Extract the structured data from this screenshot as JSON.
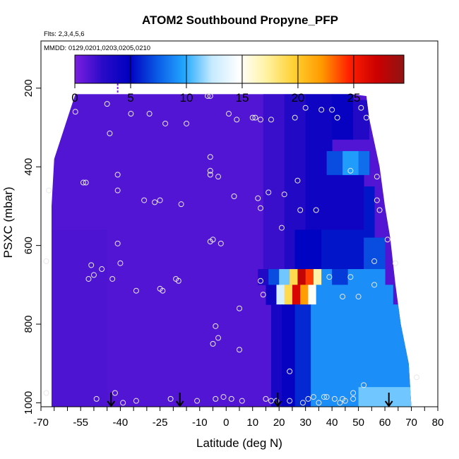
{
  "chart_data": {
    "type": "heatmap",
    "title": "ATOM2 Southbound Propyne_PFP",
    "flights_label": "Flts: 2,3,4,5,6",
    "dates_label": "MMDD: 0129,0201,0203,0205,0210",
    "xlabel": "Latitude (deg N)",
    "ylabel": "PSXC (mbar)",
    "xlim": [
      -70,
      80
    ],
    "ylim": [
      1010,
      80
    ],
    "x_ticks": [
      -70,
      -65,
      -60,
      -55,
      -50,
      -45,
      -40,
      -35,
      -30,
      -25,
      -20,
      -15,
      -10,
      -5,
      0,
      5,
      10,
      15,
      20,
      25,
      30,
      35,
      40,
      45,
      50,
      55,
      60,
      65,
      70,
      75,
      80
    ],
    "x_tick_labels": [
      {
        "value": -70,
        "label": "-70"
      },
      {
        "value": -55,
        "label": "-55"
      },
      {
        "value": -40,
        "label": "-40"
      },
      {
        "value": -25,
        "label": "-25"
      },
      {
        "value": -10,
        "label": "-10"
      },
      {
        "value": 0,
        "label": "0"
      },
      {
        "value": 10,
        "label": "10"
      },
      {
        "value": 20,
        "label": "20"
      },
      {
        "value": 30,
        "label": "30"
      },
      {
        "value": 40,
        "label": "40"
      },
      {
        "value": 50,
        "label": "50"
      },
      {
        "value": 60,
        "label": "60"
      },
      {
        "value": 70,
        "label": "70"
      },
      {
        "value": 80,
        "label": "80"
      }
    ],
    "y_tick_labels": [
      {
        "value": 200,
        "label": "200"
      },
      {
        "value": 400,
        "label": "400"
      },
      {
        "value": 600,
        "label": "600"
      },
      {
        "value": 800,
        "label": "800"
      },
      {
        "value": 1000,
        "label": "1000"
      }
    ],
    "colorbar": {
      "min": 0,
      "max": 29.5,
      "ticks": [
        0,
        5,
        10,
        15,
        20,
        25
      ],
      "tick_labels": [
        "0",
        "5",
        "10",
        "15",
        "20",
        "25"
      ],
      "color_stops": [
        "#7b1fe0",
        "#2a0bc8",
        "#0000c0",
        "#0a5ae6",
        "#23a8ff",
        "#c5eaff",
        "#ffffff",
        "#fff2a0",
        "#ffd030",
        "#ff9a00",
        "#ff2000",
        "#cc0000",
        "#8f1414"
      ]
    },
    "top_pressure_boundary": [
      {
        "lat": -57,
        "p": 215
      },
      {
        "lat": -40,
        "p": 215
      },
      {
        "lat": -10,
        "p": 215
      },
      {
        "lat": 20,
        "p": 215
      },
      {
        "lat": 47,
        "p": 215
      },
      {
        "lat": 53,
        "p": 220
      },
      {
        "lat": 54,
        "p": 275
      },
      {
        "lat": 58,
        "p": 400
      },
      {
        "lat": 60,
        "p": 500
      },
      {
        "lat": 62,
        "p": 580
      },
      {
        "lat": 64,
        "p": 700
      },
      {
        "lat": 66,
        "p": 800
      },
      {
        "lat": 69,
        "p": 900
      },
      {
        "lat": 70,
        "p": 1010
      }
    ],
    "left_boundary": [
      {
        "lat": -57,
        "p": 215
      },
      {
        "lat": -65,
        "p": 380
      },
      {
        "lat": -66,
        "p": 500
      },
      {
        "lat": -66,
        "p": 1010
      }
    ],
    "field_regions": [
      {
        "lat": [
          -66,
          70
        ],
        "p": [
          215,
          1010
        ],
        "value": 1.2
      },
      {
        "lat": [
          -66,
          -45
        ],
        "p": [
          560,
          1010
        ],
        "value": 1.4
      },
      {
        "lat": [
          14,
          22
        ],
        "p": [
          215,
          660
        ],
        "value": 2.0
      },
      {
        "lat": [
          22,
          30
        ],
        "p": [
          215,
          660
        ],
        "value": 3.0
      },
      {
        "lat": [
          30,
          40
        ],
        "p": [
          215,
          420
        ],
        "value": 4.0
      },
      {
        "lat": [
          40,
          48
        ],
        "p": [
          215,
          330
        ],
        "value": 4.5
      },
      {
        "lat": [
          48,
          54
        ],
        "p": [
          230,
          330
        ],
        "value": 3.0
      },
      {
        "lat": [
          30,
          52
        ],
        "p": [
          420,
          560
        ],
        "value": 4.0
      },
      {
        "lat": [
          52,
          56
        ],
        "p": [
          450,
          600
        ],
        "value": 5.5
      },
      {
        "lat": [
          26,
          36
        ],
        "p": [
          560,
          660
        ],
        "value": 5.0
      },
      {
        "lat": [
          36,
          52
        ],
        "p": [
          560,
          660
        ],
        "value": 5.5
      },
      {
        "lat": [
          52,
          60
        ],
        "p": [
          580,
          660
        ],
        "value": 7.0
      },
      {
        "lat": [
          38,
          44
        ],
        "p": [
          360,
          420
        ],
        "value": 7.0
      },
      {
        "lat": [
          44,
          50
        ],
        "p": [
          360,
          420
        ],
        "value": 9.5
      },
      {
        "lat": [
          50,
          54
        ],
        "p": [
          360,
          420
        ],
        "value": 8.0
      },
      {
        "lat": [
          12,
          16
        ],
        "p": [
          660,
          700
        ],
        "value": 3.0
      },
      {
        "lat": [
          16,
          20
        ],
        "p": [
          660,
          700
        ],
        "value": 7.0
      },
      {
        "lat": [
          20,
          24
        ],
        "p": [
          660,
          700
        ],
        "value": 11.0
      },
      {
        "lat": [
          24,
          27
        ],
        "p": [
          660,
          700
        ],
        "value": 19.0
      },
      {
        "lat": [
          27,
          30
        ],
        "p": [
          660,
          700
        ],
        "value": 27.5
      },
      {
        "lat": [
          30,
          33
        ],
        "p": [
          660,
          700
        ],
        "value": 24.0
      },
      {
        "lat": [
          33,
          36
        ],
        "p": [
          660,
          700
        ],
        "value": 17.0
      },
      {
        "lat": [
          36,
          40
        ],
        "p": [
          660,
          700
        ],
        "value": 9.0
      },
      {
        "lat": [
          40,
          46
        ],
        "p": [
          660,
          700
        ],
        "value": 6.5
      },
      {
        "lat": [
          46,
          60
        ],
        "p": [
          660,
          700
        ],
        "value": 9.0
      },
      {
        "lat": [
          15,
          19
        ],
        "p": [
          700,
          750
        ],
        "value": 4.0
      },
      {
        "lat": [
          19,
          22
        ],
        "p": [
          700,
          750
        ],
        "value": 13.0
      },
      {
        "lat": [
          22,
          25
        ],
        "p": [
          700,
          750
        ],
        "value": 19.0
      },
      {
        "lat": [
          25,
          28
        ],
        "p": [
          700,
          750
        ],
        "value": 26.5
      },
      {
        "lat": [
          28,
          31
        ],
        "p": [
          700,
          750
        ],
        "value": 22.0
      },
      {
        "lat": [
          31,
          34
        ],
        "p": [
          700,
          750
        ],
        "value": 15.0
      },
      {
        "lat": [
          34,
          63
        ],
        "p": [
          700,
          750
        ],
        "value": 9.0
      },
      {
        "lat": [
          17,
          21
        ],
        "p": [
          750,
          1010
        ],
        "value": 3.5
      },
      {
        "lat": [
          21,
          26
        ],
        "p": [
          750,
          1010
        ],
        "value": 4.5
      },
      {
        "lat": [
          26,
          32
        ],
        "p": [
          750,
          1010
        ],
        "value": 6.0
      },
      {
        "lat": [
          32,
          70
        ],
        "p": [
          750,
          1010
        ],
        "value": 9.0
      },
      {
        "lat": [
          50,
          70
        ],
        "p": [
          960,
          1010
        ],
        "value": 11.0
      }
    ],
    "sample_points": [
      {
        "lat": -68,
        "p": 640
      },
      {
        "lat": -67,
        "p": 460
      },
      {
        "lat": -68,
        "p": 975
      },
      {
        "lat": -57,
        "p": 260
      },
      {
        "lat": -54,
        "p": 440
      },
      {
        "lat": -53,
        "p": 440
      },
      {
        "lat": -52,
        "p": 685
      },
      {
        "lat": -51,
        "p": 650
      },
      {
        "lat": -50,
        "p": 675
      },
      {
        "lat": -49,
        "p": 990
      },
      {
        "lat": -47,
        "p": 660
      },
      {
        "lat": -45,
        "p": 240
      },
      {
        "lat": -44,
        "p": 315
      },
      {
        "lat": -43,
        "p": 685
      },
      {
        "lat": -42,
        "p": 975
      },
      {
        "lat": -41,
        "p": 460
      },
      {
        "lat": -41,
        "p": 420
      },
      {
        "lat": -40,
        "p": 645
      },
      {
        "lat": -41,
        "p": 595
      },
      {
        "lat": -39,
        "p": 1000
      },
      {
        "lat": -36,
        "p": 265
      },
      {
        "lat": -34,
        "p": 715
      },
      {
        "lat": -34,
        "p": 995
      },
      {
        "lat": -31,
        "p": 485
      },
      {
        "lat": -29,
        "p": 265
      },
      {
        "lat": -27,
        "p": 490
      },
      {
        "lat": -25,
        "p": 485
      },
      {
        "lat": -25,
        "p": 710
      },
      {
        "lat": -24,
        "p": 715
      },
      {
        "lat": -23,
        "p": 290
      },
      {
        "lat": -21,
        "p": 990
      },
      {
        "lat": -19,
        "p": 685
      },
      {
        "lat": -18,
        "p": 690
      },
      {
        "lat": -17,
        "p": 495
      },
      {
        "lat": -15,
        "p": 290
      },
      {
        "lat": -11,
        "p": 995
      },
      {
        "lat": -7,
        "p": 220
      },
      {
        "lat": -6,
        "p": 220
      },
      {
        "lat": -6,
        "p": 375
      },
      {
        "lat": -6,
        "p": 410
      },
      {
        "lat": -6,
        "p": 420
      },
      {
        "lat": -6,
        "p": 590
      },
      {
        "lat": -5,
        "p": 585
      },
      {
        "lat": -5,
        "p": 850
      },
      {
        "lat": -4,
        "p": 805
      },
      {
        "lat": -4,
        "p": 990
      },
      {
        "lat": -3,
        "p": 835
      },
      {
        "lat": -3,
        "p": 425
      },
      {
        "lat": -2,
        "p": 595
      },
      {
        "lat": -1,
        "p": 985
      },
      {
        "lat": 1,
        "p": 265
      },
      {
        "lat": 2,
        "p": 990
      },
      {
        "lat": 3,
        "p": 475
      },
      {
        "lat": 4,
        "p": 280
      },
      {
        "lat": 5,
        "p": 760
      },
      {
        "lat": 5,
        "p": 865
      },
      {
        "lat": 6,
        "p": 995
      },
      {
        "lat": 10,
        "p": 275
      },
      {
        "lat": 11,
        "p": 275
      },
      {
        "lat": 12,
        "p": 480
      },
      {
        "lat": 13,
        "p": 280
      },
      {
        "lat": 13,
        "p": 505
      },
      {
        "lat": 13,
        "p": 690
      },
      {
        "lat": 14,
        "p": 725
      },
      {
        "lat": 15,
        "p": 990
      },
      {
        "lat": 16,
        "p": 465
      },
      {
        "lat": 17,
        "p": 280
      },
      {
        "lat": 17,
        "p": 995
      },
      {
        "lat": 19,
        "p": 995
      },
      {
        "lat": 21,
        "p": 555
      },
      {
        "lat": 22,
        "p": 470
      },
      {
        "lat": 24,
        "p": 920
      },
      {
        "lat": 24,
        "p": 995
      },
      {
        "lat": 26,
        "p": 275
      },
      {
        "lat": 27,
        "p": 435
      },
      {
        "lat": 28,
        "p": 510
      },
      {
        "lat": 29,
        "p": 1000
      },
      {
        "lat": 30,
        "p": 250
      },
      {
        "lat": 31,
        "p": 990
      },
      {
        "lat": 33,
        "p": 985
      },
      {
        "lat": 34,
        "p": 510
      },
      {
        "lat": 35,
        "p": 1000
      },
      {
        "lat": 36,
        "p": 255
      },
      {
        "lat": 37,
        "p": 985
      },
      {
        "lat": 38,
        "p": 985
      },
      {
        "lat": 39,
        "p": 680
      },
      {
        "lat": 40,
        "p": 255
      },
      {
        "lat": 41,
        "p": 990
      },
      {
        "lat": 42,
        "p": 275
      },
      {
        "lat": 43,
        "p": 1000
      },
      {
        "lat": 44,
        "p": 730
      },
      {
        "lat": 44,
        "p": 990
      },
      {
        "lat": 45,
        "p": 995
      },
      {
        "lat": 47,
        "p": 410
      },
      {
        "lat": 47,
        "p": 680
      },
      {
        "lat": 48,
        "p": 975
      },
      {
        "lat": 48,
        "p": 990
      },
      {
        "lat": 50,
        "p": 730
      },
      {
        "lat": 51,
        "p": 250
      },
      {
        "lat": 52,
        "p": 955
      },
      {
        "lat": 53,
        "p": 275
      },
      {
        "lat": 56,
        "p": 640
      },
      {
        "lat": 56,
        "p": 700
      },
      {
        "lat": 57,
        "p": 425
      },
      {
        "lat": 57,
        "p": 485
      },
      {
        "lat": 58,
        "p": 510
      },
      {
        "lat": 61,
        "p": 585
      },
      {
        "lat": 64,
        "p": 645
      },
      {
        "lat": 72,
        "p": 935
      }
    ],
    "flight_markers": [
      {
        "lat": -43.5
      },
      {
        "lat": -17.5
      },
      {
        "lat": 19.5
      },
      {
        "lat": 61.5
      }
    ]
  }
}
